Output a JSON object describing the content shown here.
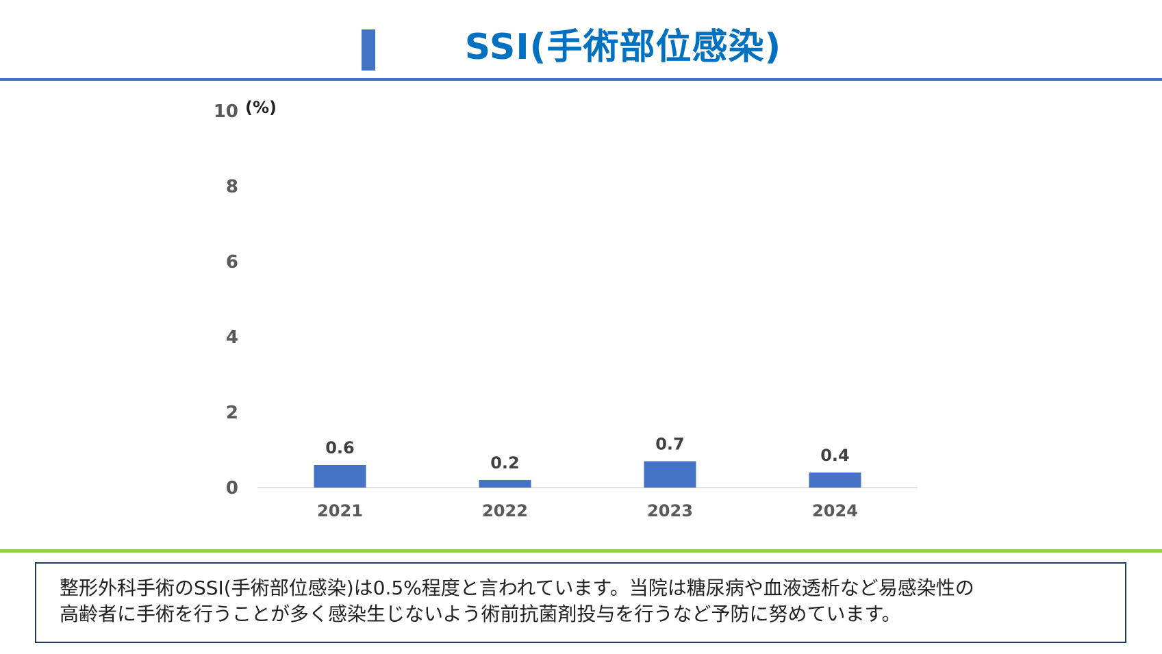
{
  "header": {
    "title": "SSI(手術部位感染)"
  },
  "colors": {
    "bar": "#4472c4",
    "title": "#0070c0",
    "rule_top": "#4472c4",
    "rule_bottom": "#92d050",
    "box_border": "#203864"
  },
  "chart_data": {
    "type": "bar",
    "categories": [
      "2021",
      "2022",
      "2023",
      "2024"
    ],
    "values": [
      0.6,
      0.2,
      0.7,
      0.4
    ],
    "data_labels": [
      "0.6",
      "0.2",
      "0.7",
      "0.4"
    ],
    "title": "",
    "xlabel": "",
    "ylabel": "(%)",
    "ylim": [
      0,
      10
    ],
    "yticks": [
      "0",
      "2",
      "4",
      "6",
      "8",
      "10"
    ],
    "grid": false,
    "legend": "none"
  },
  "note": {
    "line1": "整形外科手術のSSI(手術部位感染)は0.5%程度と言われています。当院は糖尿病や血液透析など易感染性の",
    "line2": "高齢者に手術を行うことが多く感染生じないよう術前抗菌剤投与を行うなど予防に努めています。"
  }
}
